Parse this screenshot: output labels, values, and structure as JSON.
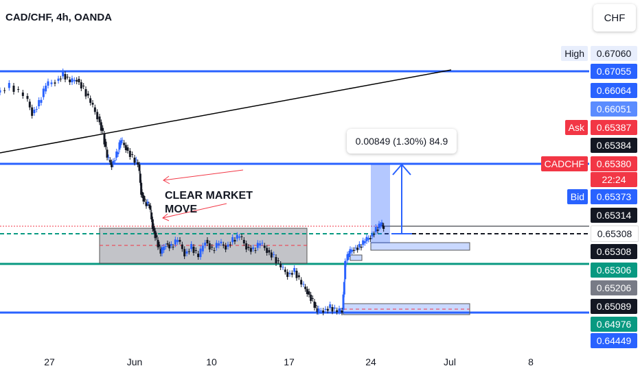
{
  "header": {
    "title": "CAD/CHF, 4h, OANDA",
    "currency": "CHF"
  },
  "price_axis": [
    {
      "label": "High",
      "value": "0.67060",
      "style": "high"
    },
    {
      "value": "0.67055",
      "style": "blue"
    },
    {
      "value": "0.66064",
      "style": "blue"
    },
    {
      "value": "0.66051",
      "style": "lightblue"
    },
    {
      "label": "Ask",
      "value": "0.65387",
      "style": "red"
    },
    {
      "value": "0.65384",
      "style": "black"
    },
    {
      "label": "CADCHF",
      "value": "0.65380",
      "style": "red",
      "countdown": "22:24"
    },
    {
      "label": "Bid",
      "value": "0.65373",
      "style": "blue"
    },
    {
      "value": "0.65314",
      "style": "black"
    },
    {
      "value": "0.65308",
      "style": "white"
    },
    {
      "value": "0.65308",
      "style": "black"
    },
    {
      "value": "0.65306",
      "style": "green"
    },
    {
      "value": "0.65206",
      "style": "gray"
    },
    {
      "value": "0.65089",
      "style": "black"
    },
    {
      "value": "0.64976",
      "style": "green"
    },
    {
      "value": "0.64449",
      "style": "blue"
    }
  ],
  "x_axis": [
    "27",
    "Jun",
    "10",
    "17",
    "24",
    "Jul",
    "8"
  ],
  "measure": {
    "text": "0.00849 (1.30%) 84.9"
  },
  "annotation": {
    "line1": "CLEAR MARKET",
    "line2": "MOVE"
  },
  "colors": {
    "up": "#2962ff",
    "down": "#131722",
    "level": "#2962ff",
    "green": "#089981",
    "red": "#f23645"
  },
  "chart_data": {
    "type": "candlestick",
    "symbol": "CAD/CHF",
    "timeframe": "4h",
    "source": "OANDA",
    "x_ticks": [
      "27",
      "Jun",
      "10",
      "17",
      "24",
      "Jul",
      "8"
    ],
    "horizontal_levels": [
      0.67055,
      0.66064,
      0.65306,
      0.64976
    ],
    "consolidation_zone": {
      "from": "May 31",
      "to": "Jun 14"
    },
    "measurement": "0.00849 (1.30%) 84.9",
    "last_price": 0.6538
  }
}
